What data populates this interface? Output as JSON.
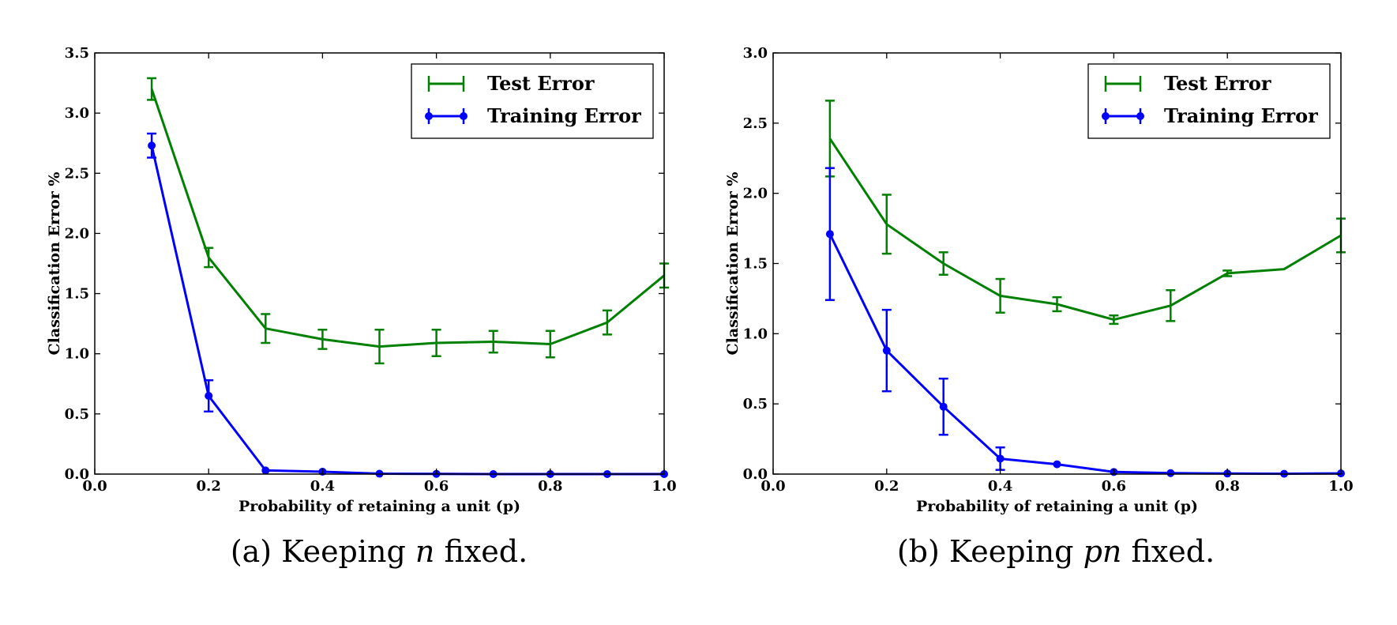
{
  "chart_data": [
    {
      "type": "line",
      "xlabel": "Probability of retaining a unit (p)",
      "ylabel": "Classification Error %",
      "xlim": [
        0.0,
        1.0
      ],
      "ylim": [
        0.0,
        3.5
      ],
      "xticks": [
        "0.0",
        "0.2",
        "0.4",
        "0.6",
        "0.8",
        "1.0"
      ],
      "yticks": [
        "0.0",
        "0.5",
        "1.0",
        "1.5",
        "2.0",
        "2.5",
        "3.0",
        "3.5"
      ],
      "grid": false,
      "legend_position": "top-right",
      "caption_prefix": "(a) Keeping ",
      "caption_var": "n",
      "caption_suffix": " fixed.",
      "series": [
        {
          "name": "Test Error",
          "color": "#008000",
          "marker": "none",
          "x": [
            0.1,
            0.2,
            0.3,
            0.4,
            0.5,
            0.6,
            0.7,
            0.8,
            0.9,
            1.0
          ],
          "y": [
            3.2,
            1.8,
            1.21,
            1.12,
            1.06,
            1.09,
            1.1,
            1.08,
            1.26,
            1.65
          ],
          "err": [
            0.09,
            0.08,
            0.12,
            0.08,
            0.14,
            0.11,
            0.09,
            0.11,
            0.1,
            0.1
          ]
        },
        {
          "name": "Training Error",
          "color": "#0000ff",
          "marker": "circle",
          "x": [
            0.1,
            0.2,
            0.3,
            0.4,
            0.5,
            0.6,
            0.7,
            0.8,
            0.9,
            1.0
          ],
          "y": [
            2.73,
            0.65,
            0.03,
            0.02,
            0.003,
            0.002,
            0.0,
            0.0,
            0.0,
            0.0
          ],
          "err": [
            0.1,
            0.13,
            0.0,
            0.0,
            0.0,
            0.0,
            0.0,
            0.0,
            0.0,
            0.0
          ]
        }
      ]
    },
    {
      "type": "line",
      "xlabel": "Probability of retaining a unit (p)",
      "ylabel": "Classification Error %",
      "xlim": [
        0.0,
        1.0
      ],
      "ylim": [
        0.0,
        3.0
      ],
      "xticks": [
        "0.0",
        "0.2",
        "0.4",
        "0.6",
        "0.8",
        "1.0"
      ],
      "yticks": [
        "0.0",
        "0.5",
        "1.0",
        "1.5",
        "2.0",
        "2.5",
        "3.0"
      ],
      "grid": false,
      "legend_position": "top-right",
      "caption_prefix": "(b) Keeping ",
      "caption_var": "pn",
      "caption_suffix": " fixed.",
      "series": [
        {
          "name": "Test Error",
          "color": "#008000",
          "marker": "none",
          "x": [
            0.1,
            0.2,
            0.3,
            0.4,
            0.5,
            0.6,
            0.7,
            0.8,
            0.9,
            1.0
          ],
          "y": [
            2.39,
            1.78,
            1.5,
            1.27,
            1.21,
            1.1,
            1.2,
            1.43,
            1.46,
            1.7
          ],
          "err": [
            0.27,
            0.21,
            0.08,
            0.12,
            0.05,
            0.03,
            0.11,
            0.02,
            0.0,
            0.12
          ]
        },
        {
          "name": "Training Error",
          "color": "#0000ff",
          "marker": "circle",
          "x": [
            0.1,
            0.2,
            0.3,
            0.4,
            0.5,
            0.6,
            0.7,
            0.8,
            0.9,
            1.0
          ],
          "y": [
            1.71,
            0.88,
            0.48,
            0.11,
            0.07,
            0.015,
            0.007,
            0.004,
            0.002,
            0.005
          ],
          "err": [
            0.47,
            0.29,
            0.2,
            0.08,
            0.0,
            0.0,
            0.0,
            0.0,
            0.0,
            0.0
          ]
        }
      ]
    }
  ]
}
